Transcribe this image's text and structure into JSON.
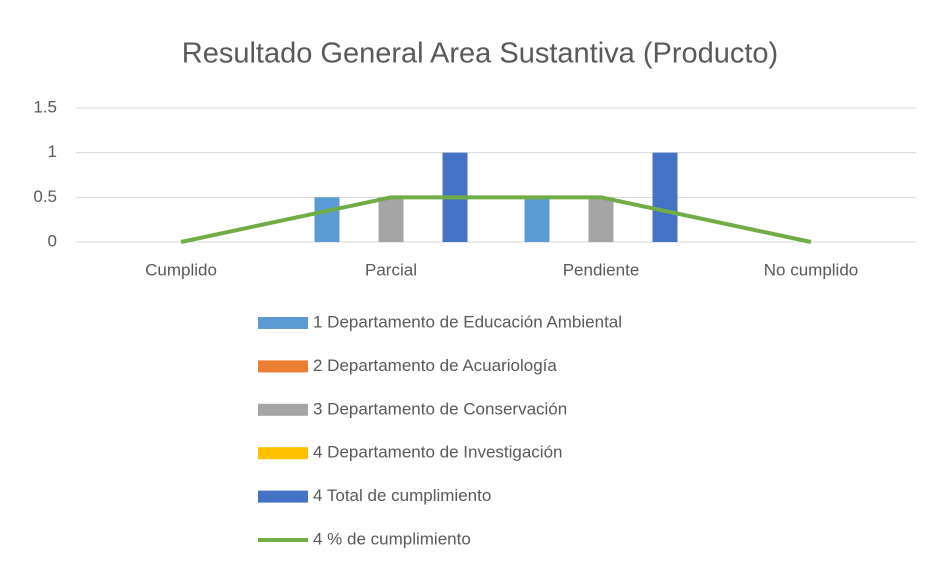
{
  "chart_data": {
    "type": "bar",
    "title": "Resultado General Area Sustantiva (Producto)",
    "categories": [
      "Cumplido",
      "Parcial",
      "Pendiente",
      "No cumplido"
    ],
    "series": [
      {
        "name": "1 Departamento de Educación Ambiental",
        "color": "#5b9bd5",
        "values": [
          0,
          0.5,
          0.5,
          0
        ]
      },
      {
        "name": "2 Departamento de Acuariología",
        "color": "#ed7d31",
        "values": [
          0,
          0,
          0,
          0
        ]
      },
      {
        "name": "3 Departamento de Conservación",
        "color": "#a5a5a5",
        "values": [
          0,
          0.5,
          0.5,
          0
        ]
      },
      {
        "name": "4 Departamento de Investigación",
        "color": "#ffc000",
        "values": [
          0,
          0,
          0,
          0
        ]
      },
      {
        "name": "4 Total de cumplimiento",
        "color": "#4472c4",
        "values": [
          0,
          1,
          1,
          0
        ]
      },
      {
        "name": "4 % de cumplimiento",
        "color": "#70ad47",
        "type": "line",
        "values": [
          0,
          0.5,
          0.5,
          0
        ]
      }
    ],
    "ylim": [
      0,
      1.5
    ],
    "yticks": [
      0,
      0.5,
      1,
      1.5
    ],
    "grid": true,
    "legend": "bottom"
  }
}
